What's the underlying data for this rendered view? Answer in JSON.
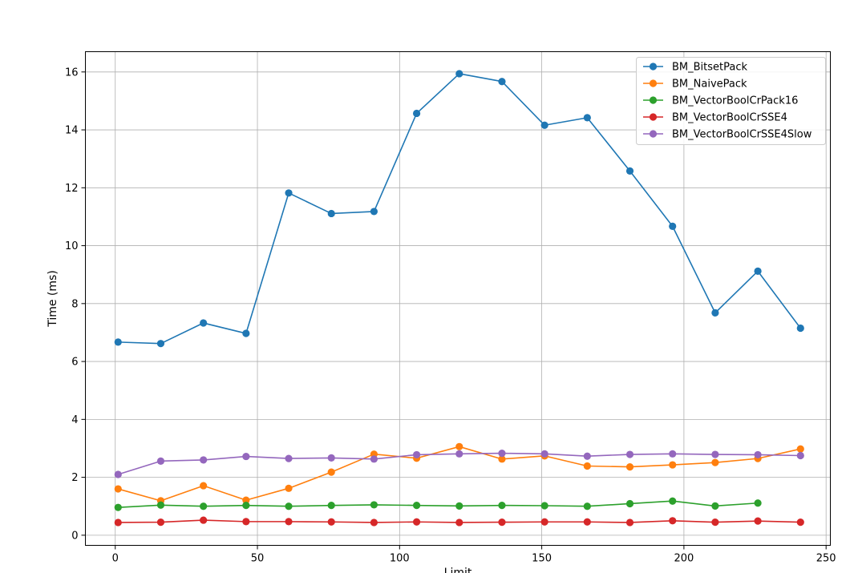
{
  "chart_data": {
    "type": "line",
    "title": "",
    "xlabel": "Limit",
    "ylabel": "Time (ms)",
    "xlim": [
      -10.5,
      251.5
    ],
    "ylim": [
      -0.35,
      16.7
    ],
    "xticks": [
      0,
      50,
      100,
      150,
      200,
      250
    ],
    "yticks": [
      0,
      2,
      4,
      6,
      8,
      10,
      12,
      14,
      16
    ],
    "xtick_labels": [
      "0",
      "50",
      "100",
      "150",
      "200",
      "250"
    ],
    "ytick_labels": [
      "0",
      "2",
      "4",
      "6",
      "8",
      "10",
      "12",
      "14",
      "16"
    ],
    "grid": true,
    "legend_position": "top-right",
    "series": [
      {
        "name": "BM_BitsetPack",
        "color": "#1f77b4",
        "x": [
          1,
          16,
          31,
          46,
          61,
          76,
          91,
          106,
          121,
          136,
          151,
          166,
          181,
          196,
          211,
          226,
          241
        ],
        "y": [
          6.67,
          6.62,
          7.33,
          6.97,
          11.82,
          11.11,
          11.18,
          14.57,
          15.94,
          15.67,
          14.16,
          14.42,
          12.58,
          10.67,
          7.68,
          9.12,
          7.15
        ]
      },
      {
        "name": "BM_NaivePack",
        "color": "#ff7f0e",
        "x": [
          1,
          16,
          31,
          46,
          61,
          76,
          91,
          106,
          121,
          136,
          151,
          166,
          181,
          196,
          211,
          226,
          241
        ],
        "y": [
          1.6,
          1.19,
          1.71,
          1.21,
          1.62,
          2.18,
          2.8,
          2.66,
          3.06,
          2.63,
          2.74,
          2.39,
          2.36,
          2.43,
          2.51,
          2.65,
          2.98
        ]
      },
      {
        "name": "BM_VectorBoolCrPack16",
        "color": "#2ca02c",
        "x": [
          1,
          16,
          31,
          46,
          61,
          76,
          91,
          106,
          121,
          136,
          151,
          166,
          181,
          196,
          211,
          226
        ],
        "y": [
          0.96,
          1.04,
          1.0,
          1.03,
          1.0,
          1.03,
          1.05,
          1.03,
          1.01,
          1.03,
          1.02,
          1.0,
          1.09,
          1.18,
          1.01,
          1.11
        ]
      },
      {
        "name": "BM_VectorBoolCrSSE4",
        "color": "#d62728",
        "x": [
          1,
          16,
          31,
          46,
          61,
          76,
          91,
          106,
          121,
          136,
          151,
          166,
          181,
          196,
          211,
          226,
          241
        ],
        "y": [
          0.44,
          0.45,
          0.52,
          0.47,
          0.47,
          0.46,
          0.44,
          0.46,
          0.44,
          0.45,
          0.46,
          0.46,
          0.44,
          0.5,
          0.45,
          0.49,
          0.45
        ]
      },
      {
        "name": "BM_VectorBoolCrSSE4Slow",
        "color": "#9467bd",
        "x": [
          1,
          16,
          31,
          46,
          61,
          76,
          91,
          106,
          121,
          136,
          151,
          166,
          181,
          196,
          211,
          226,
          241
        ],
        "y": [
          2.1,
          2.56,
          2.6,
          2.72,
          2.65,
          2.67,
          2.63,
          2.78,
          2.81,
          2.83,
          2.81,
          2.73,
          2.79,
          2.81,
          2.79,
          2.78,
          2.75
        ]
      }
    ]
  }
}
